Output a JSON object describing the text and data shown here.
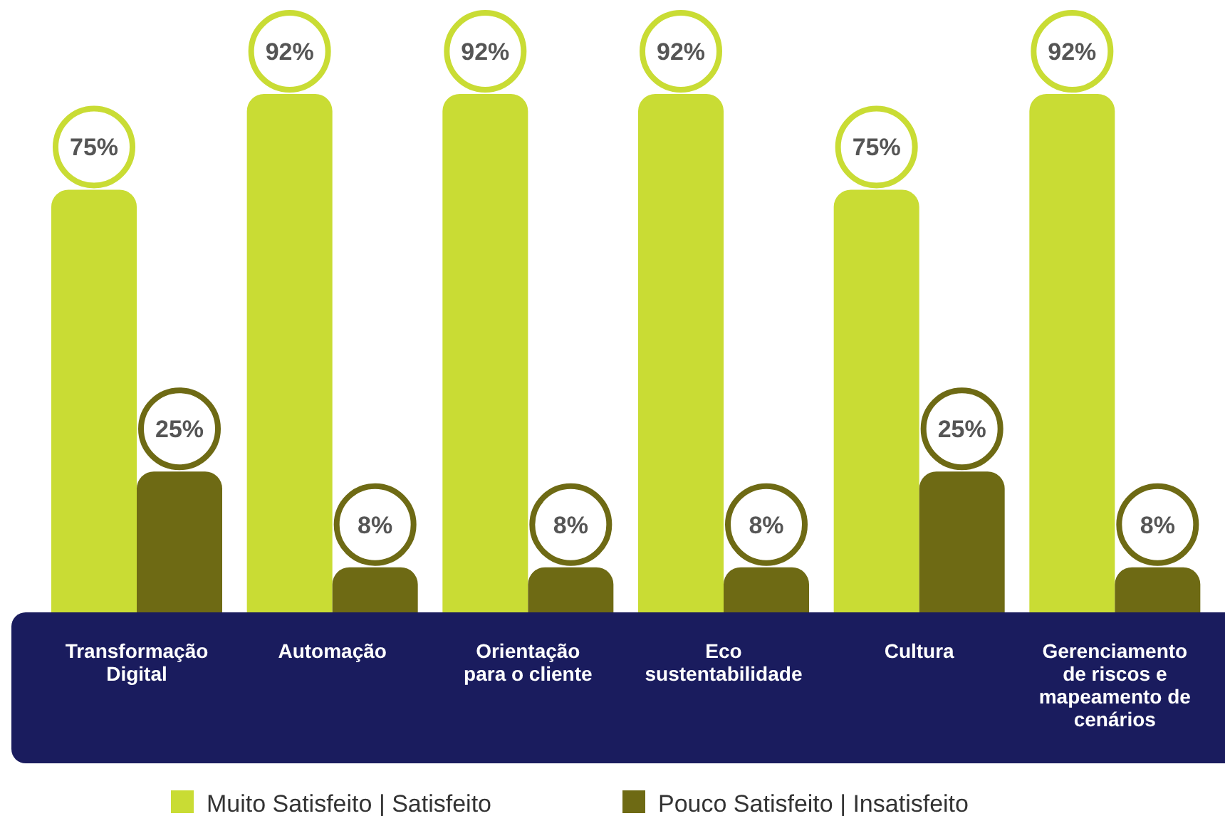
{
  "chart_data": {
    "type": "bar",
    "categories": [
      "Transformação Digital",
      "Automação",
      "Orientação para o cliente",
      "Eco sustentabilidade",
      "Cultura",
      "Gerenciamento de riscos e mapeamento de cenários"
    ],
    "series": [
      {
        "name": "Muito Satisfeito | Satisfeito",
        "color": "#c9dc34",
        "values": [
          75,
          92,
          92,
          92,
          75,
          92
        ],
        "value_labels": [
          "75%",
          "92%",
          "92%",
          "92%",
          "75%",
          "92%"
        ]
      },
      {
        "name": "Pouco Satisfeito | Insatisfeito",
        "color": "#6e6a14",
        "values": [
          25,
          8,
          8,
          8,
          25,
          8
        ],
        "value_labels": [
          "25%",
          "8%",
          "8%",
          "8%",
          "25%",
          "8%"
        ]
      }
    ],
    "legend": "bottom"
  }
}
